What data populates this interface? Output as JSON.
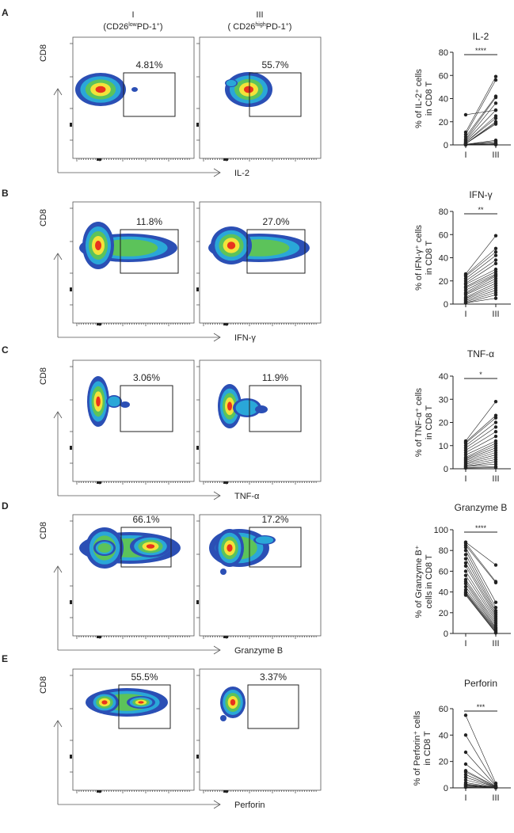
{
  "column_headers": [
    {
      "roman": "I",
      "parts": [
        "(CD26",
        "low",
        "PD-1",
        "+",
        ")"
      ]
    },
    {
      "roman": "III",
      "parts": [
        "( CD26",
        "high",
        "PD-1",
        "+",
        ")"
      ]
    }
  ],
  "y_axis_marker": "CD8",
  "panels": [
    {
      "label": "A",
      "x_marker": "IL-2",
      "gates": [
        "4.81%",
        "55.7%"
      ]
    },
    {
      "label": "B",
      "x_marker": "IFN-γ",
      "gates": [
        "11.8%",
        "27.0%"
      ]
    },
    {
      "label": "C",
      "x_marker": "TNF-α",
      "gates": [
        "3.06%",
        "11.9%"
      ]
    },
    {
      "label": "D",
      "x_marker": "Granzyme B",
      "gates": [
        "66.1%",
        "17.2%"
      ]
    },
    {
      "label": "E",
      "x_marker": "Perforin",
      "gates": [
        "55.5%",
        "3.37%"
      ]
    }
  ],
  "chart_data": [
    {
      "type": "scatter",
      "subtype": "paired",
      "title": "IL-2",
      "ylabel": [
        "% of IL-2⁺ cells",
        "in CD8  T"
      ],
      "categories": [
        "I",
        "III"
      ],
      "ylim": [
        0,
        80
      ],
      "yticks": [
        0,
        20,
        40,
        60,
        80
      ],
      "significance": "****",
      "series": [
        {
          "values_I": [
            26,
            11,
            9,
            7,
            5,
            4,
            3,
            2,
            2,
            1,
            1,
            1,
            0.5,
            0.5,
            0.3,
            0.2,
            0.2,
            0.1,
            0.1,
            0
          ],
          "values_III": [
            30,
            59,
            56,
            42,
            41,
            36,
            30,
            25,
            23,
            20,
            19,
            18,
            4,
            3,
            2,
            1,
            1,
            0.5,
            0.3,
            0.2
          ]
        }
      ]
    },
    {
      "type": "scatter",
      "subtype": "paired",
      "title": "IFN-γ",
      "ylabel": [
        "% of IFN-γ⁺ cells",
        "in CD8  T"
      ],
      "categories": [
        "I",
        "III"
      ],
      "ylim": [
        0,
        80
      ],
      "yticks": [
        0,
        20,
        40,
        60,
        80
      ],
      "significance": "**",
      "series": [
        {
          "values_I": [
            26,
            25,
            24,
            22,
            20,
            18,
            17,
            15,
            14,
            12,
            10,
            9,
            8,
            6,
            5,
            4,
            3,
            2,
            1,
            1
          ],
          "values_III": [
            59,
            48,
            45,
            42,
            38,
            35,
            30,
            28,
            26,
            25,
            24,
            22,
            20,
            18,
            16,
            14,
            12,
            10,
            8,
            5
          ]
        }
      ]
    },
    {
      "type": "scatter",
      "subtype": "paired",
      "title": "TNF-α",
      "ylabel": [
        "% of TNF-α⁺ cells",
        "in CD8  T"
      ],
      "categories": [
        "I",
        "III"
      ],
      "ylim": [
        0,
        40
      ],
      "yticks": [
        0,
        10,
        20,
        30,
        40
      ],
      "significance": "*",
      "series": [
        {
          "values_I": [
            12,
            11.5,
            11,
            10,
            9,
            8,
            7,
            6,
            5,
            4.5,
            4,
            3.5,
            3,
            2.5,
            2,
            1.5,
            1,
            1,
            0.5,
            0.3
          ],
          "values_III": [
            29,
            23,
            22,
            20,
            18,
            16,
            14,
            12,
            11,
            10,
            9,
            8,
            7,
            6,
            5,
            4,
            3,
            2,
            1,
            0.5
          ]
        }
      ]
    },
    {
      "type": "scatter",
      "subtype": "paired",
      "title": "Granzyme B",
      "ylabel": [
        "% of Granzyme B⁺",
        "cells in CD8  T"
      ],
      "categories": [
        "I",
        "III"
      ],
      "ylim": [
        0,
        100
      ],
      "yticks": [
        0,
        20,
        40,
        60,
        80,
        100
      ],
      "significance": "****",
      "series": [
        {
          "values_I": [
            88,
            87,
            85,
            83,
            80,
            76,
            72,
            68,
            65,
            60,
            56,
            52,
            50,
            48,
            45,
            42,
            40,
            39,
            38,
            37
          ],
          "values_III": [
            66,
            50,
            49,
            30,
            25,
            22,
            20,
            18,
            16,
            14,
            12,
            10,
            8,
            6,
            5,
            4,
            3,
            2,
            1,
            0.5
          ]
        }
      ]
    },
    {
      "type": "scatter",
      "subtype": "paired",
      "title": "Perforin",
      "ylabel": [
        "% of Perforin⁺ cells",
        "in CD8  T"
      ],
      "categories": [
        "I",
        "III"
      ],
      "ylim": [
        0,
        60
      ],
      "yticks": [
        0,
        20,
        40,
        60
      ],
      "significance": "***",
      "series": [
        {
          "values_I": [
            55,
            40,
            27,
            18,
            13,
            12,
            10,
            8,
            6,
            4,
            3,
            2.5,
            2,
            1.5,
            1,
            0.5
          ],
          "values_III": [
            3.5,
            2,
            1.5,
            1,
            1,
            0.8,
            0.5,
            0.5,
            0.3,
            0.3,
            0.2,
            0.2,
            0.1,
            0.1,
            0.1,
            0
          ]
        }
      ]
    }
  ],
  "colors": {
    "density": [
      "#2b4fb5",
      "#2aa7d8",
      "#5cc35a",
      "#f3e33a",
      "#e8321e"
    ],
    "ink": "#222222"
  }
}
